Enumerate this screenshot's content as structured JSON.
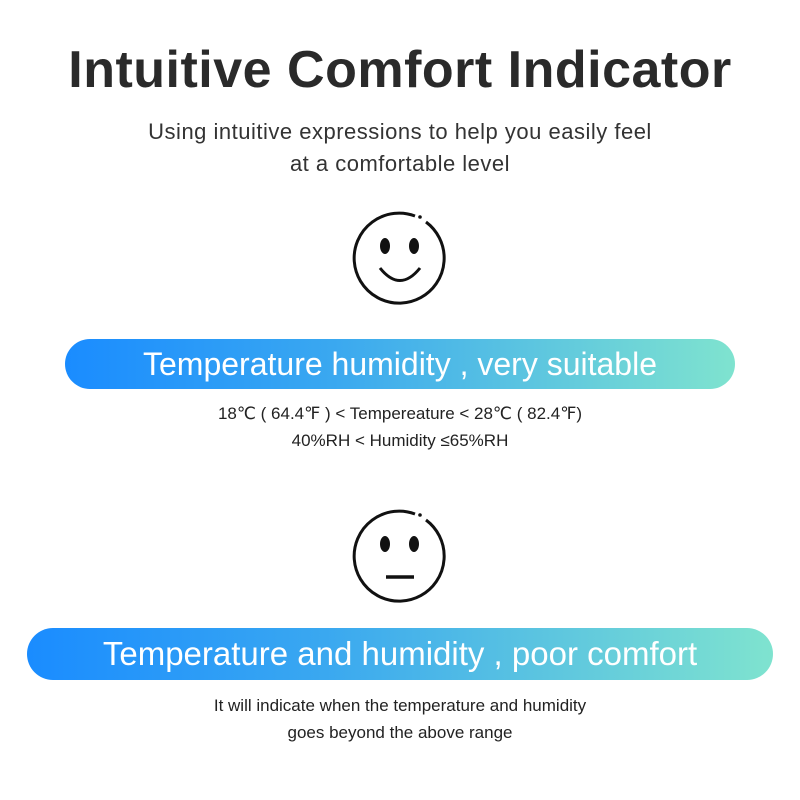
{
  "title": "Intuitive Comfort Indicator",
  "subtitle": [
    "Using intuitive expressions to help you easily feel",
    "at a comfortable level"
  ],
  "sections": [
    {
      "face_icon": "smiley-face-icon",
      "banner": "Temperature humidity , very suitable",
      "lines": [
        "18℃ ( 64.4℉ ) < Tempereature < 28℃ ( 82.4℉)",
        "40%RH  <  Humidity ≤65%RH"
      ]
    },
    {
      "face_icon": "neutral-face-icon",
      "banner": "Temperature and humidity , poor comfort",
      "lines": [
        "It will indicate when the temperature and humidity",
        "goes beyond the above range"
      ]
    }
  ],
  "colors": {
    "banner_start": "#1a8cff",
    "banner_end": "#7fe3cf"
  }
}
